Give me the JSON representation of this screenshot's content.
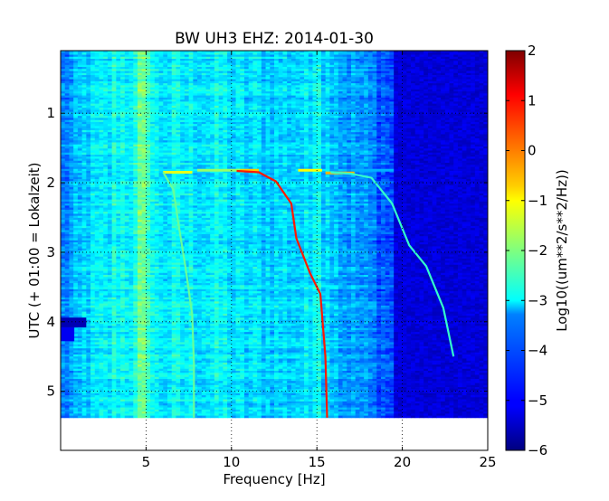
{
  "chart_data": {
    "type": "heatmap",
    "title": "BW UH3 EHZ: 2014-01-30",
    "xlabel": "Frequency [Hz]",
    "ylabel": "UTC (+ 01:00 = Lokalzeit)",
    "xlim": [
      0,
      25
    ],
    "ylim": [
      5.85,
      0.1
    ],
    "data_ylim_end": 5.38,
    "x_ticks": [
      5,
      10,
      15,
      20,
      25
    ],
    "y_ticks": [
      1,
      2,
      3,
      4,
      5
    ],
    "grid": true,
    "colorbar": {
      "label": "Log10((um**2/s**2/Hz))",
      "range": [
        -6,
        2
      ],
      "ticks": [
        2,
        1,
        0,
        -1,
        -2,
        -3,
        -4,
        -5,
        -6
      ],
      "colormap": "jet"
    },
    "traces": [
      {
        "points": [
          [
            6.0,
            1.85
          ],
          [
            6.6,
            2.1
          ],
          [
            6.9,
            2.6
          ],
          [
            7.3,
            3.2
          ],
          [
            7.7,
            3.9
          ],
          [
            7.8,
            4.6
          ],
          [
            7.8,
            5.38
          ]
        ],
        "level": -2.2
      },
      {
        "points": [
          [
            10.3,
            1.83
          ],
          [
            11.6,
            1.85
          ],
          [
            12.6,
            1.98
          ],
          [
            13.5,
            2.3
          ],
          [
            13.8,
            2.8
          ],
          [
            14.6,
            3.3
          ],
          [
            15.2,
            3.6
          ],
          [
            15.5,
            4.5
          ],
          [
            15.6,
            5.38
          ]
        ],
        "level": 0.8
      },
      {
        "points": [
          [
            15.8,
            1.85
          ],
          [
            17.0,
            1.87
          ],
          [
            18.2,
            1.93
          ],
          [
            19.4,
            2.3
          ],
          [
            20.4,
            2.9
          ],
          [
            21.4,
            3.2
          ],
          [
            22.4,
            3.8
          ],
          [
            23.0,
            4.5
          ]
        ],
        "level": -2.6
      }
    ],
    "segments": [
      {
        "x": [
          6.0,
          7.7
        ],
        "y": 1.85,
        "level": -1.2
      },
      {
        "x": [
          10.3,
          11.6
        ],
        "y": 1.82,
        "level": -0.6
      },
      {
        "x": [
          13.9,
          15.3
        ],
        "y": 1.82,
        "level": -1.0
      },
      {
        "x": [
          15.5,
          17.2
        ],
        "y": 1.86,
        "level": -0.4
      },
      {
        "x": [
          17.2,
          19.5
        ],
        "y": 1.82,
        "level": -3.6
      },
      {
        "x": [
          8.0,
          10.5
        ],
        "y": 1.82,
        "level": -1.8
      }
    ],
    "blocks": [
      {
        "x": [
          0,
          1.5
        ],
        "y": [
          3.94,
          4.08
        ],
        "level": -5.6
      },
      {
        "x": [
          0,
          0.8
        ],
        "y": [
          4.08,
          4.28
        ],
        "level": -5.1
      }
    ]
  }
}
